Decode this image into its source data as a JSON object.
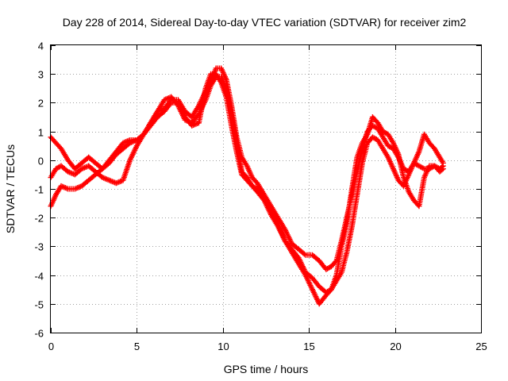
{
  "chart_data": {
    "type": "scatter",
    "title": "Day 228 of 2014, Sidereal Day-to-day VTEC variation (SDTVAR) for receiver zim2",
    "xlabel": "GPS time / hours",
    "ylabel": "SDTVAR / TECUs",
    "xlim": [
      0,
      25
    ],
    "ylim": [
      -6,
      4
    ],
    "xticks": [
      0,
      5,
      10,
      15,
      20,
      25
    ],
    "xtick_labels": [
      "0",
      "5",
      "10",
      "15",
      "20",
      "25"
    ],
    "yticks": [
      -6,
      -5,
      -4,
      -3,
      -2,
      -1,
      0,
      1,
      2,
      3,
      4
    ],
    "ytick_labels": [
      "-6",
      "-5",
      "-4",
      "-3",
      "-2",
      "-1",
      "0",
      "1",
      "2",
      "3",
      "4"
    ],
    "grid": true,
    "marker": "+",
    "color": "#ff0000",
    "series": [
      {
        "name": "trace-1",
        "x": [
          0.0,
          0.3,
          0.6,
          1.0,
          1.4,
          1.8,
          2.2,
          2.6,
          3.0,
          3.4,
          3.8,
          4.2,
          4.6,
          5.0,
          5.4,
          5.8,
          6.2,
          6.6,
          7.0,
          7.4,
          7.8,
          8.2,
          8.6,
          9.0,
          9.3,
          9.6,
          9.9,
          10.2,
          10.5,
          10.8,
          11.1,
          11.4,
          11.7,
          12.0,
          12.4,
          12.8,
          13.2,
          13.6,
          14.0,
          14.4,
          14.8,
          15.2,
          15.6,
          16.0,
          16.3,
          16.6,
          16.9,
          17.2,
          17.5,
          17.8,
          18.1,
          18.4,
          18.7,
          19.0,
          19.3,
          19.6,
          19.9,
          20.2,
          20.5,
          20.8,
          21.1,
          21.4,
          21.7,
          22.0,
          22.3,
          22.6,
          22.8
        ],
        "y": [
          -0.6,
          -0.3,
          -0.2,
          -0.4,
          -0.5,
          -0.3,
          -0.2,
          -0.4,
          -0.6,
          -0.7,
          -0.8,
          -0.7,
          0.0,
          0.5,
          0.9,
          1.3,
          1.7,
          2.1,
          2.2,
          1.9,
          1.4,
          1.3,
          1.6,
          2.1,
          2.6,
          2.9,
          2.9,
          2.5,
          1.6,
          0.6,
          -0.4,
          -0.6,
          -0.9,
          -1.1,
          -1.4,
          -1.9,
          -2.3,
          -2.8,
          -3.1,
          -3.4,
          -3.9,
          -4.1,
          -4.4,
          -4.6,
          -4.5,
          -4.2,
          -3.9,
          -3.2,
          -2.3,
          -1.2,
          -0.1,
          0.6,
          0.8,
          0.7,
          0.4,
          0.1,
          -0.3,
          -0.7,
          -0.9,
          -0.5,
          -0.1,
          -0.2,
          -0.3,
          -0.3,
          -0.2,
          -0.4,
          -0.3
        ]
      },
      {
        "name": "trace-2",
        "x": [
          0.0,
          0.3,
          0.6,
          1.0,
          1.4,
          1.8,
          2.2,
          2.6,
          3.0,
          3.4,
          3.8,
          4.2,
          4.6,
          5.0,
          5.4,
          5.8,
          6.2,
          6.6,
          7.0,
          7.4,
          7.8,
          8.2,
          8.6,
          9.0,
          9.3,
          9.6,
          9.9,
          10.2,
          10.5,
          10.8,
          11.1,
          11.4,
          11.7,
          12.0,
          12.4,
          12.8,
          13.2,
          13.6,
          14.0,
          14.4,
          14.8,
          15.2,
          15.6,
          16.0,
          16.3,
          16.6,
          16.9,
          17.2,
          17.5,
          17.8,
          18.1,
          18.4,
          18.7,
          19.0,
          19.3,
          19.6,
          19.9,
          20.2,
          20.5,
          20.8,
          21.1,
          21.4,
          21.7,
          22.0,
          22.3,
          22.6,
          22.8
        ],
        "y": [
          0.8,
          0.6,
          0.4,
          0.0,
          -0.3,
          -0.1,
          0.1,
          -0.1,
          -0.3,
          -0.1,
          0.2,
          0.4,
          0.6,
          0.7,
          0.9,
          1.3,
          1.7,
          1.8,
          2.1,
          2.1,
          1.7,
          1.5,
          1.9,
          2.4,
          2.7,
          3.2,
          3.2,
          2.8,
          1.9,
          0.8,
          0.1,
          -0.2,
          -0.6,
          -0.8,
          -1.2,
          -1.6,
          -2.0,
          -2.4,
          -2.9,
          -3.1,
          -3.3,
          -3.3,
          -3.5,
          -3.8,
          -3.7,
          -3.5,
          -2.8,
          -2.0,
          -1.2,
          -0.4,
          0.4,
          1.0,
          1.2,
          1.1,
          0.8,
          0.5,
          0.4,
          0.1,
          -0.3,
          -0.4,
          -0.1,
          0.3,
          0.9,
          0.6,
          0.4,
          0.1,
          -0.1
        ]
      },
      {
        "name": "trace-3",
        "x": [
          0.0,
          0.3,
          0.6,
          1.0,
          1.4,
          1.8,
          2.2,
          2.6,
          3.0,
          3.4,
          3.8,
          4.2,
          4.6,
          5.0,
          5.4,
          5.8,
          6.2,
          6.6,
          7.0,
          7.4,
          7.8,
          8.2,
          8.6,
          9.0,
          9.3,
          9.6,
          9.9,
          10.2,
          10.5,
          10.8,
          11.1,
          11.4,
          11.7,
          12.0,
          12.4,
          12.8,
          13.2,
          13.6,
          14.0,
          14.4,
          14.8,
          15.2,
          15.6,
          16.0,
          16.3,
          16.6,
          16.9,
          17.2,
          17.5,
          17.8,
          18.1,
          18.4,
          18.7,
          19.0,
          19.3,
          19.6,
          19.9,
          20.2,
          20.5,
          20.8,
          21.1,
          21.4,
          21.7,
          22.0,
          22.3,
          22.6,
          22.8
        ],
        "y": [
          -1.6,
          -1.2,
          -0.9,
          -1.0,
          -1.0,
          -0.9,
          -0.7,
          -0.5,
          -0.3,
          0.0,
          0.3,
          0.6,
          0.7,
          0.7,
          0.9,
          1.2,
          1.5,
          1.7,
          2.0,
          2.0,
          1.5,
          1.2,
          1.3,
          2.5,
          3.0,
          3.0,
          2.7,
          2.2,
          1.2,
          0.3,
          -0.5,
          -0.7,
          -0.9,
          -1.0,
          -1.3,
          -1.7,
          -2.2,
          -2.8,
          -3.2,
          -3.6,
          -4.0,
          -4.5,
          -5.0,
          -4.7,
          -4.5,
          -4.0,
          -3.0,
          -2.2,
          -1.0,
          0.1,
          0.6,
          0.9,
          1.5,
          1.3,
          1.0,
          0.9,
          0.6,
          0.2,
          -0.6,
          -1.1,
          -1.4,
          -1.6,
          -0.6,
          -0.2,
          -0.2,
          -0.3,
          -0.2
        ]
      }
    ]
  }
}
